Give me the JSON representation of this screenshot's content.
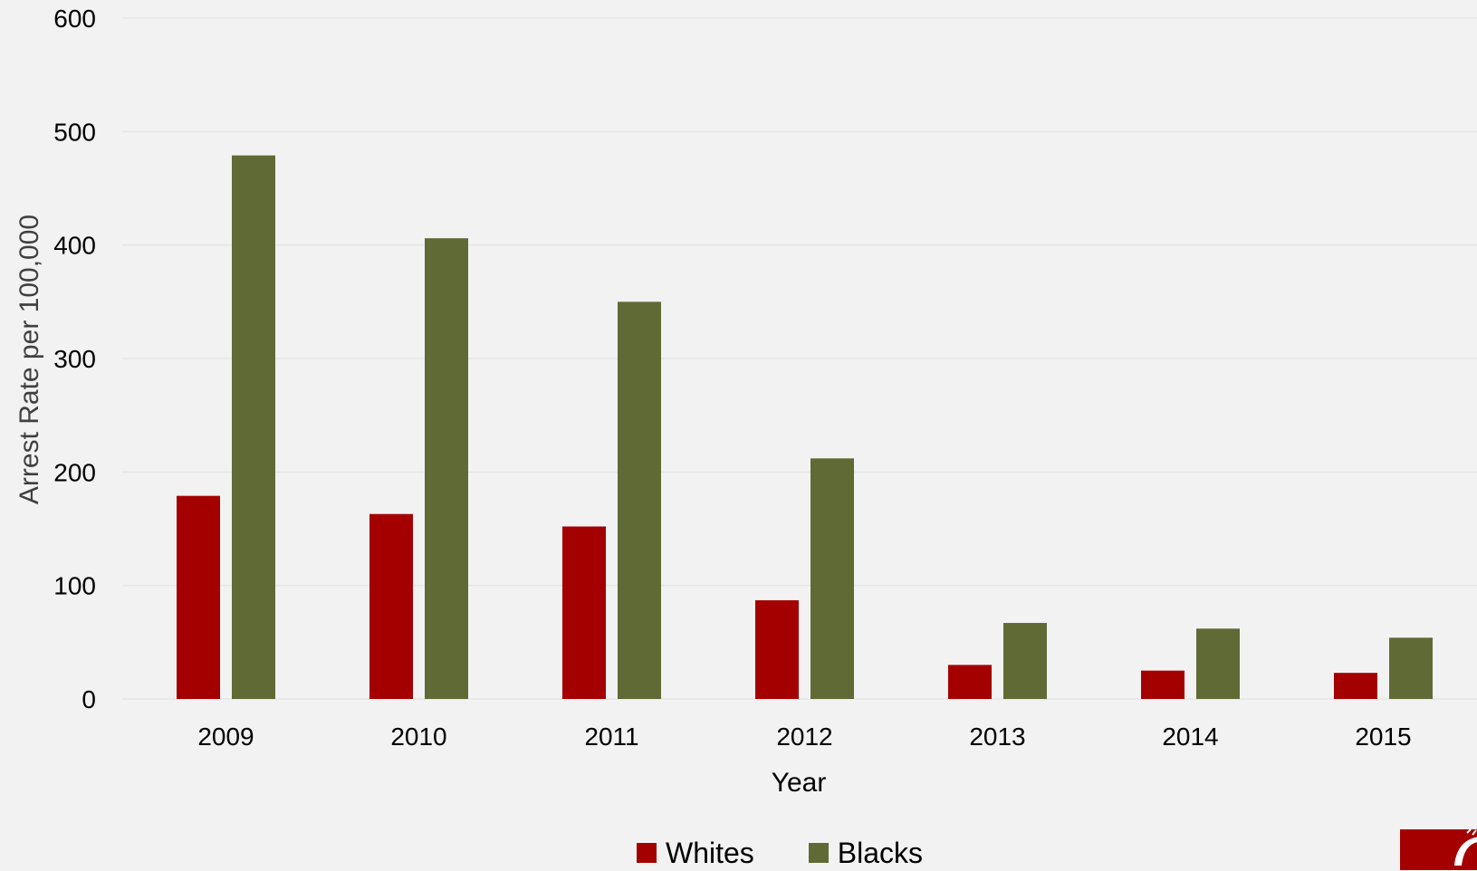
{
  "chart_data": {
    "type": "bar",
    "xlabel": "Year",
    "ylabel": "Arrest Rate per 100,000",
    "ylim": [
      0,
      600
    ],
    "yticks": [
      "0",
      "100",
      "200",
      "300",
      "400",
      "500",
      "600"
    ],
    "categories": [
      "2009",
      "2010",
      "2011",
      "2012",
      "2013",
      "2014",
      "2015"
    ],
    "grid": true,
    "legend_position": "bottom",
    "series": [
      {
        "name": "Whites",
        "color": "#a50000",
        "values": [
          179,
          163,
          152,
          87,
          30,
          25,
          23
        ]
      },
      {
        "name": "Blacks",
        "color": "#606a35",
        "values": [
          479,
          406,
          350,
          212,
          67,
          62,
          54
        ]
      }
    ]
  },
  "logo": {
    "color": "#a50000",
    "icon": "cougar-logo-icon"
  }
}
